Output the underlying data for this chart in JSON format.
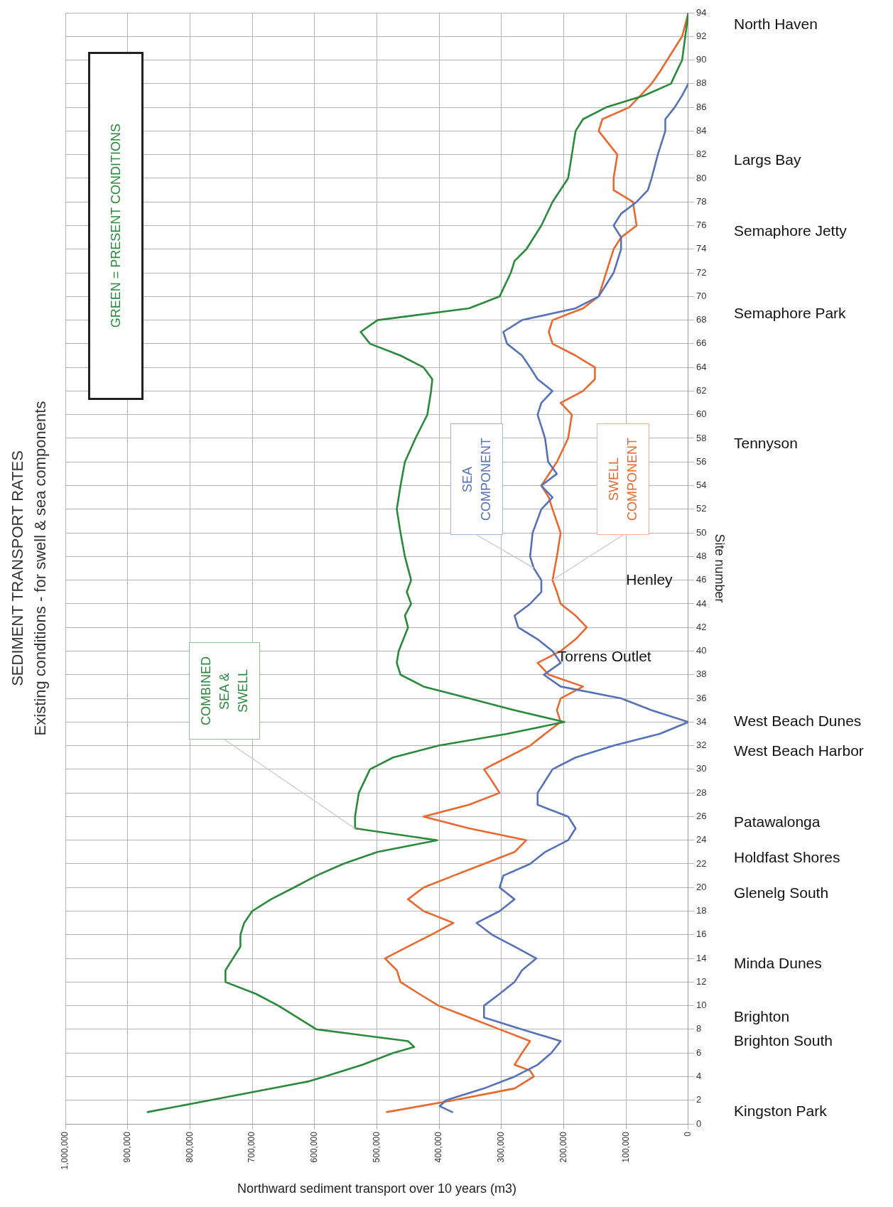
{
  "chart_data": {
    "type": "line",
    "title": "SEDIMENT TRANSPORT RATES",
    "subtitle": "Existing conditions - for swell & sea components",
    "xlabel": "Northward sediment transport over 10 years (m3)",
    "ylabel": "Site number",
    "xlim": [
      1000000,
      0
    ],
    "xticks": [
      {
        "value": 1000000,
        "label": "1,000,000"
      },
      {
        "value": 900000,
        "label": "900,000"
      },
      {
        "value": 800000,
        "label": "800,000"
      },
      {
        "value": 700000,
        "label": "700,000"
      },
      {
        "value": 600000,
        "label": "600,000"
      },
      {
        "value": 500000,
        "label": "500,000"
      },
      {
        "value": 400000,
        "label": "400,000"
      },
      {
        "value": 300000,
        "label": "300,000"
      },
      {
        "value": 200000,
        "label": "200,000"
      },
      {
        "value": 100000,
        "label": "100,000"
      },
      0
    ],
    "ylim": [
      0,
      94
    ],
    "yticks": [
      0,
      2,
      4,
      6,
      8,
      10,
      12,
      14,
      16,
      18,
      20,
      22,
      24,
      26,
      28,
      30,
      32,
      34,
      36,
      38,
      40,
      42,
      44,
      46,
      48,
      50,
      52,
      54,
      56,
      58,
      60,
      62,
      64,
      66,
      68,
      70,
      72,
      74,
      76,
      78,
      80,
      82,
      84,
      86,
      88,
      90,
      92,
      94
    ],
    "grid": true,
    "legend": false,
    "series": [
      {
        "name": "COMBINED SEA & SWELL",
        "color": "#2a8a3c",
        "x": [
          868000,
          768000,
          609000,
          584000,
          523000,
          474000,
          440000,
          450000,
          597000,
          658000,
          694000,
          743000,
          743000,
          731000,
          719000,
          719000,
          713000,
          700000,
          670000,
          633000,
          597000,
          554000,
          499000,
          403000,
          535000,
          535000,
          529000,
          511000,
          474000,
          401000,
          291000,
          199000,
          279000,
          352000,
          425000,
          462000,
          468000,
          465000,
          450000,
          455000,
          445000,
          452000,
          445000,
          455000,
          462000,
          468000,
          462000,
          455000,
          438000,
          419000,
          413000,
          411000,
          425000,
          462000,
          511000,
          526000,
          499000,
          352000,
          303000,
          285000,
          279000,
          260000,
          236000,
          218000,
          193000,
          187000,
          181000,
          169000,
          132000,
          71000,
          28000,
          10000,
          5000,
          0
        ],
        "values": [
          1,
          2,
          3.6,
          4,
          5,
          6,
          6.5,
          7,
          8,
          10,
          11,
          12,
          13,
          14,
          15,
          16,
          17,
          18,
          19,
          20,
          21,
          22,
          23,
          24,
          25,
          26,
          28,
          30,
          31,
          32,
          33,
          34,
          35,
          36,
          37,
          38,
          39,
          40,
          42,
          43,
          44,
          45,
          46,
          48,
          50,
          52,
          54,
          56,
          58,
          60,
          62,
          63,
          64,
          65,
          66,
          67,
          68,
          69,
          70,
          72,
          73,
          74,
          76,
          78,
          80,
          82,
          84,
          85,
          86,
          87,
          88,
          90,
          92,
          94
        ]
      },
      {
        "name": "SEA COMPONENT",
        "color": "#5572b8",
        "x": [
          379000,
          399000,
          389000,
          328000,
          279000,
          242000,
          220000,
          205000,
          267000,
          328000,
          328000,
          303000,
          279000,
          267000,
          244000,
          279000,
          315000,
          340000,
          303000,
          279000,
          303000,
          297000,
          254000,
          230000,
          193000,
          181000,
          193000,
          242000,
          242000,
          230000,
          218000,
          181000,
          120000,
          46000,
          0,
          59000,
          108000,
          205000,
          232000,
          205000,
          218000,
          242000,
          273000,
          279000,
          254000,
          236000,
          236000,
          248000,
          254000,
          250000,
          236000,
          218000,
          236000,
          211000,
          225000,
          230000,
          242000,
          236000,
          218000,
          242000,
          254000,
          267000,
          291000,
          297000,
          267000,
          181000,
          144000,
          132000,
          120000,
          108000,
          108000,
          120000,
          108000,
          83000,
          65000,
          59000,
          49000,
          37000,
          37000,
          22000,
          10000,
          0
        ],
        "values": [
          1,
          1.5,
          2,
          3,
          4,
          5,
          6,
          7,
          8,
          9,
          10,
          11,
          12,
          13,
          14,
          15,
          16,
          17,
          18,
          19,
          20,
          21,
          22,
          23,
          24,
          25,
          26,
          27,
          28,
          29,
          30,
          31,
          32,
          33,
          34,
          35,
          36,
          37,
          38,
          39,
          40,
          41,
          42,
          43,
          44,
          45,
          46,
          47,
          48,
          50,
          52,
          53,
          54,
          55,
          56,
          58,
          60,
          61,
          62,
          63,
          64,
          65,
          66,
          67,
          68,
          69,
          70,
          71,
          72,
          74,
          75,
          76,
          77,
          78,
          79,
          80,
          82,
          84,
          85,
          86,
          87,
          88
        ]
      },
      {
        "name": "SWELL COMPONENT",
        "color": "#e8682e",
        "x": [
          484000,
          377000,
          279000,
          248000,
          254000,
          279000,
          267000,
          254000,
          303000,
          352000,
          401000,
          432000,
          462000,
          468000,
          487000,
          450000,
          413000,
          377000,
          425000,
          450000,
          425000,
          377000,
          328000,
          279000,
          260000,
          352000,
          425000,
          352000,
          303000,
          315000,
          328000,
          291000,
          254000,
          230000,
          205000,
          211000,
          205000,
          169000,
          224000,
          242000,
          205000,
          181000,
          163000,
          181000,
          205000,
          211000,
          218000,
          211000,
          205000,
          218000,
          224000,
          236000,
          211000,
          193000,
          187000,
          205000,
          169000,
          150000,
          150000,
          181000,
          218000,
          224000,
          218000,
          169000,
          144000,
          132000,
          120000,
          108000,
          83000,
          89000,
          120000,
          120000,
          114000,
          144000,
          138000,
          95000,
          59000,
          46000,
          34000,
          10000,
          0
        ],
        "values": [
          1,
          2,
          3,
          4,
          4.5,
          5,
          6,
          7,
          8,
          9,
          10,
          11,
          12,
          13,
          14,
          15,
          16,
          17,
          18,
          19,
          20,
          21,
          22,
          23,
          24,
          25,
          26,
          27,
          28,
          29,
          30,
          31,
          32,
          33,
          34,
          35,
          36,
          37,
          38,
          39,
          40,
          41,
          42,
          43,
          44,
          45,
          46,
          48,
          50,
          52,
          53,
          54,
          56,
          58,
          60,
          61,
          62,
          63,
          64,
          65,
          66,
          67,
          68,
          69,
          70,
          72,
          74,
          75,
          76,
          78,
          79,
          80,
          82,
          84,
          85,
          86,
          88,
          89,
          90,
          92,
          94
        ]
      }
    ],
    "annotations": [
      "GREEN = PRESENT CONDITIONS",
      "North Haven",
      "Largs Bay",
      "Semaphore Jetty",
      "Semaphore Park",
      "Tennyson",
      "Henley",
      "Torrens Outlet",
      "West Beach Dunes",
      "West Beach Harbor",
      "Patawalonga",
      "Holdfast Shores",
      "Glenelg South",
      "Minda Dunes",
      "Brighton",
      "Brighton South",
      "Kingston Park"
    ]
  }
}
